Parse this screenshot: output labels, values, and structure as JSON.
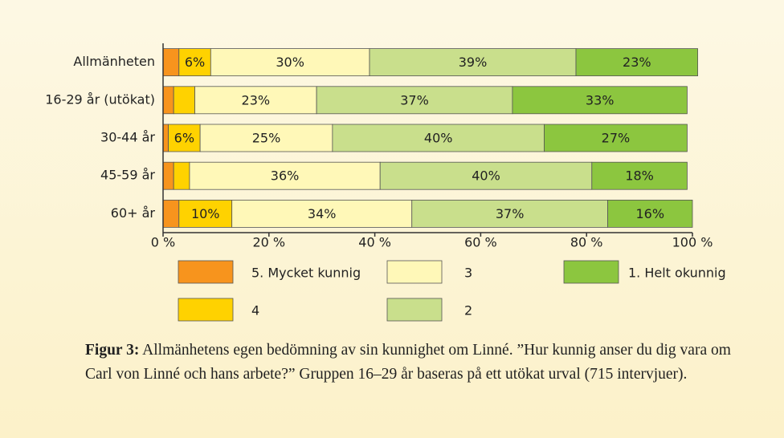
{
  "chart_data": {
    "type": "stacked_barh",
    "categories": [
      "Allmänheten",
      "16-29 år (utökat)",
      "30-44 år",
      "45-59 år",
      "60+ år"
    ],
    "series": [
      {
        "name": "5. Mycket kunnig",
        "color": "#f7941d",
        "values": [
          3,
          2,
          1,
          2,
          3
        ]
      },
      {
        "name": "4",
        "color": "#ffd200",
        "values": [
          6,
          4,
          6,
          3,
          10
        ],
        "value_labels": [
          "6%",
          null,
          "6%",
          null,
          "10%"
        ]
      },
      {
        "name": "3",
        "color": "#fff8b8",
        "values": [
          30,
          23,
          25,
          36,
          34
        ],
        "value_labels": [
          "30%",
          "23%",
          "25%",
          "36%",
          "34%"
        ]
      },
      {
        "name": "2",
        "color": "#c9df8c",
        "values": [
          39,
          37,
          40,
          40,
          37
        ],
        "value_labels": [
          "39%",
          "37%",
          "40%",
          "40%",
          "37%"
        ]
      },
      {
        "name": "1. Helt okunnig",
        "color": "#8cc63f",
        "values": [
          23,
          33,
          27,
          18,
          16
        ],
        "value_labels": [
          "23%",
          "33%",
          "27%",
          "18%",
          "16%"
        ]
      }
    ],
    "xlim": [
      0,
      100
    ],
    "xticks": [
      {
        "value": 0,
        "label": "0 %"
      },
      {
        "value": 20,
        "label": "20 %"
      },
      {
        "value": 40,
        "label": "40 %"
      },
      {
        "value": 60,
        "label": "60 %"
      },
      {
        "value": 80,
        "label": "80 %"
      },
      {
        "value": 100,
        "label": "100 %"
      }
    ]
  },
  "caption_label": "Figur 3:",
  "caption": "Allmänhetens egen bedömning av sin kunnighet om Linné. ”Hur kunnig anser du dig vara om Carl von Linné och hans arbete?” Gruppen 16–29 år baseras på ett utökat urval (715 intervjuer)."
}
